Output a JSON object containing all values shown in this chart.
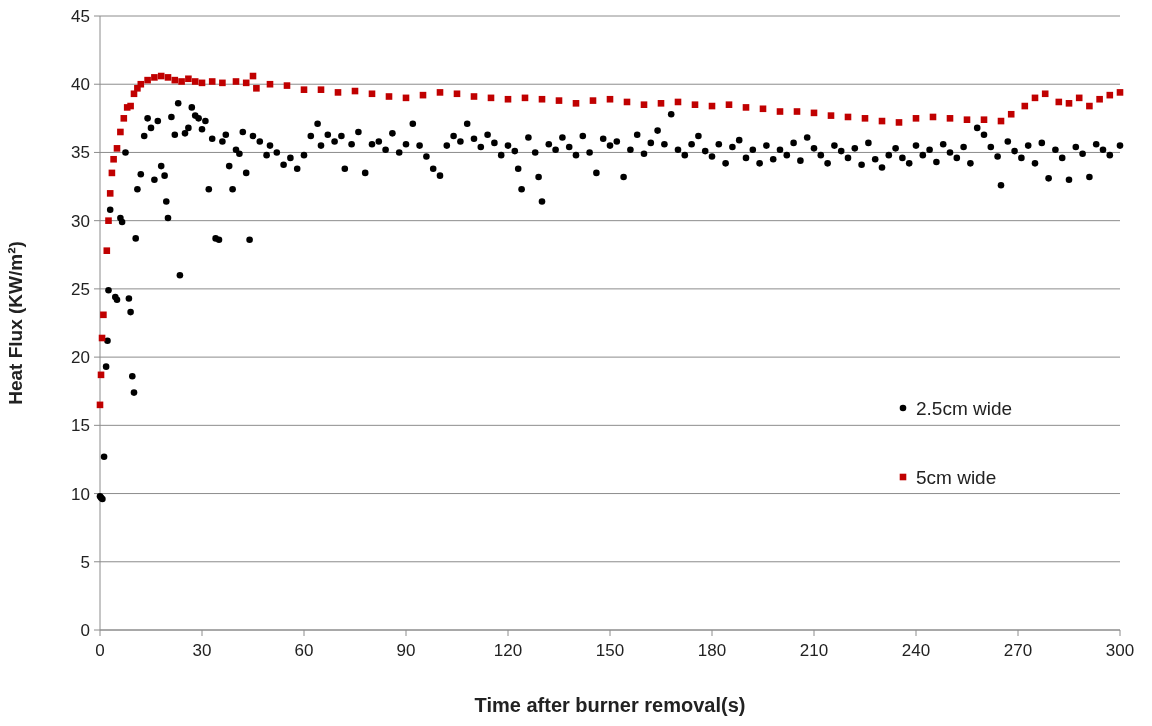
{
  "chart_data": {
    "type": "scatter",
    "xlabel": "Time after burner removal(s)",
    "ylabel": "Heat Flux  (KW/m²)",
    "xlim": [
      0,
      300
    ],
    "xticks": [
      0,
      30,
      60,
      90,
      120,
      150,
      180,
      210,
      240,
      270,
      300
    ],
    "ylim": [
      0,
      45
    ],
    "yticks": [
      0,
      5,
      10,
      15,
      20,
      25,
      30,
      35,
      40,
      45
    ],
    "grid": "y",
    "legend": "right",
    "series": [
      {
        "name": "2.5cm wide",
        "color": "#000000",
        "marker": "circle",
        "x": [
          0,
          0.3,
          0.7,
          1.2,
          1.8,
          2.2,
          2.5,
          3,
          4.5,
          5,
          6,
          6.5,
          7.5,
          8.5,
          9,
          9.5,
          10,
          10.5,
          11,
          12,
          13,
          14,
          15,
          16,
          17,
          18,
          19,
          19.5,
          20,
          21,
          22,
          23,
          23.5,
          25,
          26,
          27,
          28,
          29,
          30,
          31,
          32,
          33,
          34,
          35,
          36,
          37,
          38,
          39,
          40,
          41,
          42,
          43,
          44,
          45,
          47,
          49,
          50,
          52,
          54,
          56,
          58,
          60,
          62,
          64,
          65,
          67,
          69,
          71,
          72,
          74,
          76,
          78,
          80,
          82,
          84,
          86,
          88,
          90,
          92,
          94,
          96,
          98,
          100,
          102,
          104,
          106,
          108,
          110,
          112,
          114,
          116,
          118,
          120,
          122,
          123,
          124,
          126,
          128,
          129,
          130,
          132,
          134,
          136,
          138,
          140,
          142,
          144,
          146,
          148,
          150,
          152,
          154,
          156,
          158,
          160,
          162,
          164,
          166,
          168,
          170,
          172,
          174,
          176,
          178,
          180,
          182,
          184,
          186,
          188,
          190,
          192,
          194,
          196,
          198,
          200,
          202,
          204,
          206,
          208,
          210,
          212,
          214,
          216,
          218,
          220,
          222,
          224,
          226,
          228,
          230,
          232,
          234,
          236,
          238,
          240,
          242,
          244,
          246,
          248,
          250,
          252,
          254,
          256,
          258,
          260,
          262,
          264,
          265,
          267,
          269,
          271,
          273,
          275,
          277,
          279,
          281,
          283,
          285,
          287,
          289,
          291,
          293,
          295,
          297,
          300
        ],
        "values": [
          9.8,
          9.7,
          9.6,
          12.7,
          19.3,
          21.2,
          24.9,
          30.8,
          24.4,
          24.2,
          30.2,
          29.9,
          35,
          24.3,
          23.3,
          18.6,
          17.4,
          28.7,
          32.3,
          33.4,
          36.2,
          37.5,
          36.8,
          33,
          37.3,
          34,
          33.3,
          31.4,
          30.2,
          37.6,
          36.3,
          38.6,
          26,
          36.4,
          36.8,
          38.3,
          37.7,
          37.5,
          36.7,
          37.3,
          32.3,
          36,
          28.7,
          28.6,
          35.8,
          36.3,
          34,
          32.3,
          35.2,
          34.9,
          36.5,
          33.5,
          28.6,
          36.2,
          35.8,
          34.8,
          35.5,
          35,
          34.1,
          34.6,
          33.8,
          34.8,
          36.2,
          37.1,
          35.5,
          36.3,
          35.8,
          36.2,
          33.8,
          35.6,
          36.5,
          33.5,
          35.6,
          35.8,
          35.2,
          36.4,
          35,
          35.6,
          37.1,
          35.5,
          34.7,
          33.8,
          33.3,
          35.5,
          36.2,
          35.8,
          37.1,
          36,
          35.4,
          36.3,
          35.7,
          34.8,
          35.5,
          35.1,
          33.8,
          32.3,
          36.1,
          35,
          33.2,
          31.4,
          35.6,
          35.2,
          36.1,
          35.4,
          34.8,
          36.2,
          35,
          33.5,
          36,
          35.5,
          35.8,
          33.2,
          35.2,
          36.3,
          34.9,
          35.7,
          36.6,
          35.6,
          37.8,
          35.2,
          34.8,
          35.6,
          36.2,
          35.1,
          34.7,
          35.6,
          34.2,
          35.4,
          35.9,
          34.6,
          35.2,
          34.2,
          35.5,
          34.5,
          35.2,
          34.8,
          35.7,
          34.4,
          36.1,
          35.3,
          34.8,
          34.2,
          35.5,
          35.1,
          34.6,
          35.3,
          34.1,
          35.7,
          34.5,
          33.9,
          34.8,
          35.3,
          34.6,
          34.2,
          35.5,
          34.8,
          35.2,
          34.3,
          35.6,
          35,
          34.6,
          35.4,
          34.2,
          36.8,
          36.3,
          35.4,
          34.7,
          32.6,
          35.8,
          35.1,
          34.6,
          35.5,
          34.2,
          35.7,
          33.1,
          35.2,
          34.6,
          33,
          35.4,
          34.9,
          33.2,
          35.6,
          35.2,
          34.8,
          35.5
        ]
      },
      {
        "name": "5cm wide",
        "color": "#c00000",
        "marker": "square",
        "x": [
          0,
          0.3,
          0.6,
          1,
          2,
          2.5,
          3,
          3.5,
          4,
          5,
          6,
          7,
          8,
          9,
          10,
          11,
          12,
          14,
          16,
          18,
          20,
          22,
          24,
          26,
          28,
          30,
          33,
          36,
          40,
          43,
          45,
          46,
          50,
          55,
          60,
          65,
          70,
          75,
          80,
          85,
          90,
          95,
          100,
          105,
          110,
          115,
          120,
          125,
          130,
          135,
          140,
          145,
          150,
          155,
          160,
          165,
          170,
          175,
          180,
          185,
          190,
          195,
          200,
          205,
          210,
          215,
          220,
          225,
          230,
          235,
          240,
          245,
          250,
          255,
          260,
          265,
          268,
          272,
          275,
          278,
          282,
          285,
          288,
          291,
          294,
          297,
          300
        ],
        "values": [
          16.5,
          18.7,
          21.4,
          23.1,
          27.8,
          30,
          32,
          33.5,
          34.5,
          35.3,
          36.5,
          37.5,
          38.3,
          38.4,
          39.3,
          39.7,
          40,
          40.3,
          40.5,
          40.6,
          40.5,
          40.3,
          40.2,
          40.4,
          40.2,
          40.1,
          40.2,
          40.1,
          40.2,
          40.1,
          40.6,
          39.7,
          40,
          39.9,
          39.6,
          39.6,
          39.4,
          39.5,
          39.3,
          39.1,
          39,
          39.2,
          39.4,
          39.3,
          39.1,
          39,
          38.9,
          39,
          38.9,
          38.8,
          38.6,
          38.8,
          38.9,
          38.7,
          38.5,
          38.6,
          38.7,
          38.5,
          38.4,
          38.5,
          38.3,
          38.2,
          38,
          38,
          37.9,
          37.7,
          37.6,
          37.5,
          37.3,
          37.2,
          37.5,
          37.6,
          37.5,
          37.4,
          37.4,
          37.3,
          37.8,
          38.4,
          39,
          39.3,
          38.7,
          38.6,
          39,
          38.4,
          38.9,
          39.2,
          39.4
        ]
      }
    ]
  }
}
